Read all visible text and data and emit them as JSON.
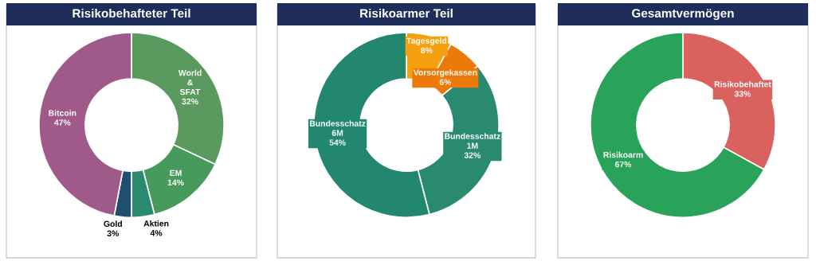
{
  "chart_data": [
    {
      "type": "donut",
      "title": "Risikobehafteter Teil",
      "categories": [
        "World & SFAT",
        "EM",
        "Aktien",
        "Gold",
        "Bitcoin"
      ],
      "values": [
        32,
        14,
        4,
        3,
        47
      ],
      "value_labels": [
        "32%",
        "14%",
        "4%",
        "3%",
        "47%"
      ],
      "colors": [
        "#5a9a5e",
        "#459a5c",
        "#2a8a70",
        "#1f4e6e",
        "#a05a8a"
      ],
      "legend": false
    },
    {
      "type": "donut",
      "title": "Risikoarmer Teil",
      "categories": [
        "Tagesgeld",
        "Vorsorgekassen",
        "Bundesschatz 1M",
        "Bundesschatz 6M"
      ],
      "values": [
        8,
        6,
        32,
        54
      ],
      "value_labels": [
        "8%",
        "6%",
        "32%",
        "54%"
      ],
      "colors": [
        "#f5a00f",
        "#ec7a0a",
        "#2a8a70",
        "#22876e"
      ],
      "legend": false
    },
    {
      "type": "donut",
      "title": "Gesamtvermögen",
      "categories": [
        "Risikobehaftet",
        "Risikoarm"
      ],
      "values": [
        33,
        67
      ],
      "value_labels": [
        "33%",
        "67%"
      ],
      "colors": [
        "#d9625f",
        "#2aa35a"
      ],
      "legend": false
    }
  ]
}
